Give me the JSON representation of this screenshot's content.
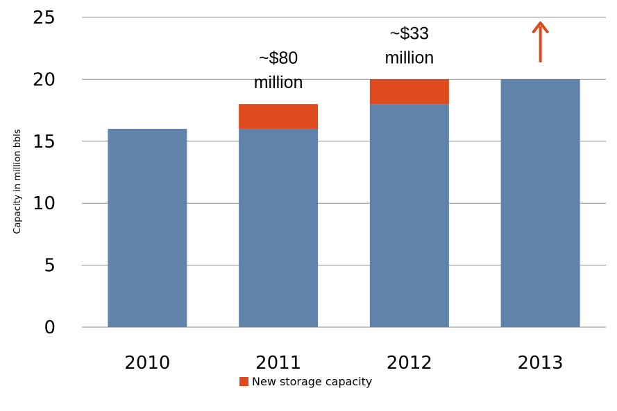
{
  "chart_data": {
    "type": "bar",
    "stacked": true,
    "categories": [
      "2010",
      "2011",
      "2012",
      "2013"
    ],
    "series": [
      {
        "values": [
          16,
          16,
          18,
          20
        ]
      },
      {
        "name": "New storage capacity",
        "values": [
          0,
          2,
          2,
          0
        ]
      }
    ],
    "ylabel": "Capacity in million bbls",
    "ylim": [
      0,
      25
    ],
    "yticks": [
      0,
      5,
      10,
      15,
      20,
      25
    ],
    "grid": true,
    "legend": "bottom",
    "annotations": [
      {
        "category": "2011",
        "line1": "~$80",
        "line2": "million"
      },
      {
        "category": "2012",
        "line1": "~$33",
        "line2": "million"
      },
      {
        "category": "2013",
        "arrow": "up"
      }
    ],
    "colors": {
      "base": "#5F83AA",
      "new": "#DC4A1E",
      "grid": "#8C8C8C"
    }
  }
}
